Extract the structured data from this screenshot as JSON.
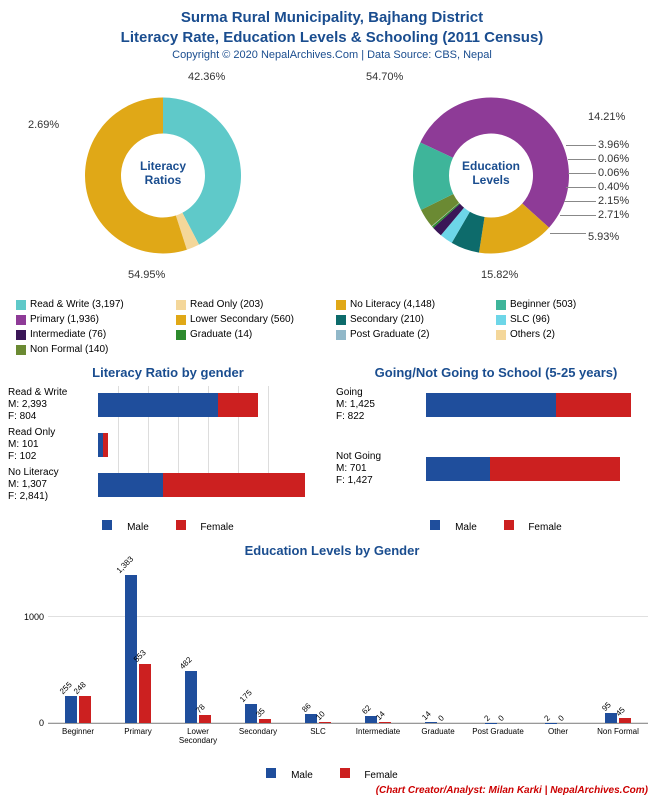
{
  "header": {
    "title_line1": "Surma Rural Municipality, Bajhang District",
    "title_line2": "Literacy Rate, Education Levels & Schooling (2011 Census)",
    "copyright": "Copyright © 2020 NepalArchives.Com | Data Source: CBS, Nepal"
  },
  "colors": {
    "male": "#1f4e9c",
    "female": "#cc2020",
    "title": "#1a4d8f",
    "grid": "#e0e0e0"
  },
  "donut_literacy": {
    "center_label": "Literacy Ratios",
    "slices": [
      {
        "label": "Read & Write (3,197)",
        "pct": 42.36,
        "color": "#5fc9c9",
        "show_pct": "42.36%"
      },
      {
        "label": "Read Only (203)",
        "pct": 2.69,
        "color": "#f4d79a",
        "show_pct": "2.69%"
      },
      {
        "label": "No Literacy (4,148)",
        "pct": 54.95,
        "color": "#e0a817",
        "show_pct": "54.95%"
      }
    ]
  },
  "donut_education": {
    "center_label": "Education Levels",
    "slices": [
      {
        "label": "Beginner (503)",
        "pct": 14.21,
        "color": "#3eb59a",
        "show_pct": "14.21%"
      },
      {
        "label": "Primary (1,936)",
        "pct": 54.7,
        "color": "#8e3b97",
        "show_pct": "54.70%"
      },
      {
        "label": "Lower Secondary (560)",
        "pct": 15.82,
        "color": "#e0a817",
        "show_pct": "15.82%"
      },
      {
        "label": "Secondary (210)",
        "pct": 5.93,
        "color": "#0d6b6b",
        "show_pct": "5.93%"
      },
      {
        "label": "SLC (96)",
        "pct": 2.71,
        "color": "#6dd6e8",
        "show_pct": "2.71%"
      },
      {
        "label": "Intermediate (76)",
        "pct": 2.15,
        "color": "#3a1657",
        "show_pct": "2.15%"
      },
      {
        "label": "Graduate (14)",
        "pct": 0.4,
        "color": "#2d8a2d",
        "show_pct": "0.40%"
      },
      {
        "label": "Post Graduate (2)",
        "pct": 0.06,
        "color": "#91b8c9",
        "show_pct": "0.06%"
      },
      {
        "label": "Non Formal (140)",
        "pct": 3.96,
        "color": "#6b8a33",
        "show_pct": "3.96%"
      },
      {
        "label": "Others (2)",
        "pct": 0.06,
        "color": "#f4d79a",
        "show_pct": "0.06%"
      }
    ]
  },
  "literacy_gender": {
    "title": "Literacy Ratio by gender",
    "max": 4200,
    "rows": [
      {
        "label": "Read & Write",
        "m_label": "M: 2,393",
        "f_label": "F: 804",
        "m": 2393,
        "f": 804
      },
      {
        "label": "Read Only",
        "m_label": "M: 101",
        "f_label": "F: 102",
        "m": 101,
        "f": 102
      },
      {
        "label": "No Literacy",
        "m_label": "M: 1,307",
        "f_label": "F: 2,841)",
        "m": 1307,
        "f": 2841
      }
    ],
    "legend_m": "Male",
    "legend_f": "Female"
  },
  "school_going": {
    "title": "Going/Not Going to School (5-25 years)",
    "max": 2300,
    "rows": [
      {
        "label": "Going",
        "m_label": "M: 1,425",
        "f_label": "F: 822",
        "m": 1425,
        "f": 822
      },
      {
        "label": "Not Going",
        "m_label": "M: 701",
        "f_label": "F: 1,427",
        "m": 701,
        "f": 1427
      }
    ],
    "legend_m": "Male",
    "legend_f": "Female"
  },
  "edu_gender": {
    "title": "Education Levels by Gender",
    "ymax": 1400,
    "yticks": [
      0,
      1000
    ],
    "categories": [
      "Beginner",
      "Primary",
      "Lower Secondary",
      "Secondary",
      "SLC",
      "Intermediate",
      "Graduate",
      "Post Graduate",
      "Other",
      "Non Formal"
    ],
    "male": [
      255,
      1383,
      482,
      175,
      86,
      62,
      14,
      2,
      2,
      95
    ],
    "female": [
      248,
      553,
      78,
      35,
      10,
      14,
      0,
      0,
      0,
      45
    ],
    "legend_m": "Male",
    "legend_f": "Female"
  },
  "credit": "(Chart Creator/Analyst: Milan Karki | NepalArchives.Com)"
}
